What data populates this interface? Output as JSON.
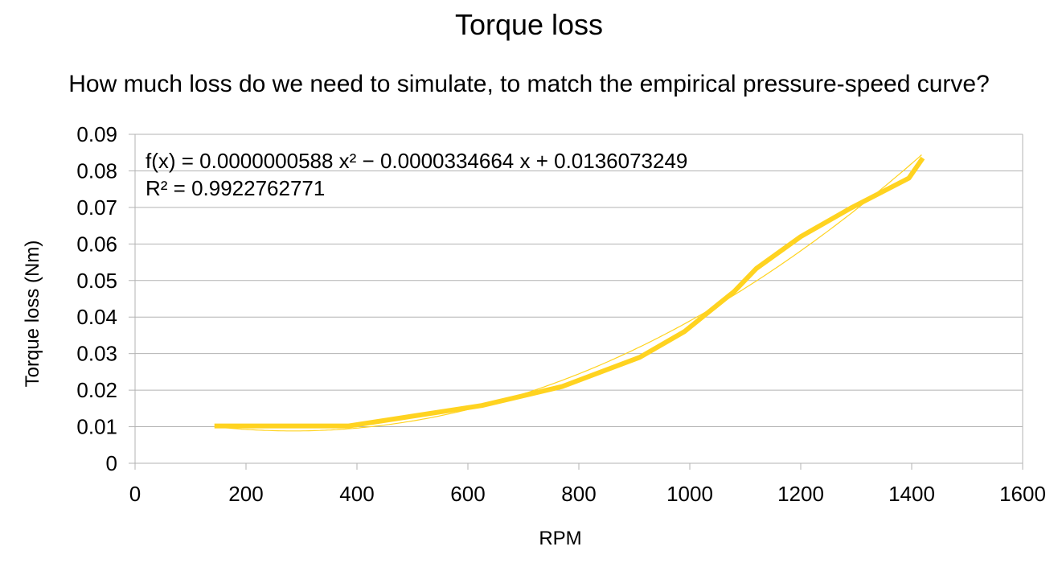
{
  "chart_data": {
    "type": "line",
    "title": "Torque loss",
    "subtitle": "How much loss do we need to simulate, to match the empirical pressure-speed curve?",
    "xlabel": "RPM",
    "ylabel": "Torque loss (Nm)",
    "xlim": [
      0,
      1600
    ],
    "ylim": [
      0,
      0.09
    ],
    "x_ticks": [
      0,
      200,
      400,
      600,
      800,
      1000,
      1200,
      1400,
      1600
    ],
    "y_ticks": [
      0,
      0.01,
      0.02,
      0.03,
      0.04,
      0.05,
      0.06,
      0.07,
      0.08,
      0.09
    ],
    "x_tick_labels": [
      "0",
      "200",
      "400",
      "600",
      "800",
      "1000",
      "1200",
      "1400",
      "1600"
    ],
    "y_tick_labels": [
      "0",
      "0.01",
      "0.02",
      "0.03",
      "0.04",
      "0.05",
      "0.06",
      "0.07",
      "0.08",
      "0.09"
    ],
    "grid": true,
    "series": [
      {
        "color": "#ffd320",
        "x": [
          143,
          385,
          625,
          770,
          910,
          990,
          1080,
          1120,
          1200,
          1290,
          1395,
          1420
        ],
        "y": [
          0.0102,
          0.0102,
          0.0158,
          0.021,
          0.029,
          0.036,
          0.047,
          0.0533,
          0.062,
          0.0698,
          0.078,
          0.0835
        ]
      }
    ],
    "trendline": {
      "type": "polynomial",
      "order": 2,
      "coefficients": [
        5.88e-08,
        -3.34664e-05,
        0.0136073249
      ],
      "x_range": [
        143,
        1420
      ],
      "color": "#ffd320",
      "equation_label": "f(x) = 0.0000000588 x² − 0.0000334664 x + 0.0136073249",
      "r2_label": "R² = 0.9922762771"
    }
  }
}
